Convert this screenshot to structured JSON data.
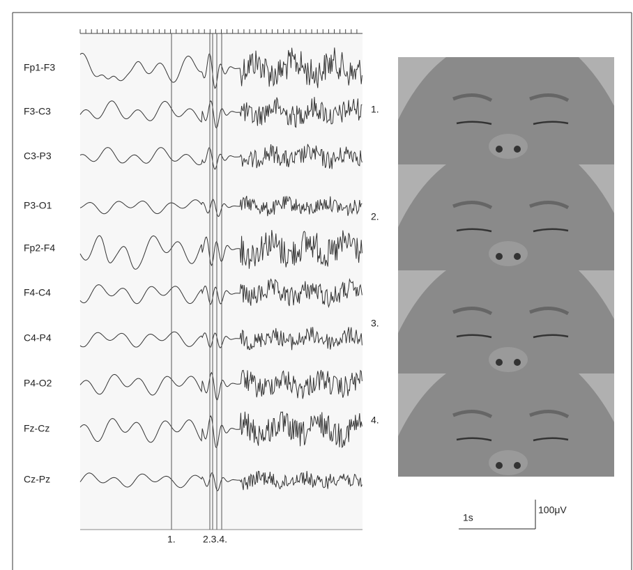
{
  "figure": {
    "channels": [
      "Fp1-F3",
      "F3-C3",
      "C3-P3",
      "P3-O1",
      "Fp2-F4",
      "F4-C4",
      "C4-P4",
      "P4-O2",
      "Fz-Cz",
      "Cz-Pz"
    ],
    "markers": [
      "1.",
      "2.3.4."
    ],
    "frames": [
      "1.",
      "2.",
      "3.",
      "4."
    ],
    "scale": {
      "time": "1s",
      "amplitude": "100μV"
    }
  }
}
